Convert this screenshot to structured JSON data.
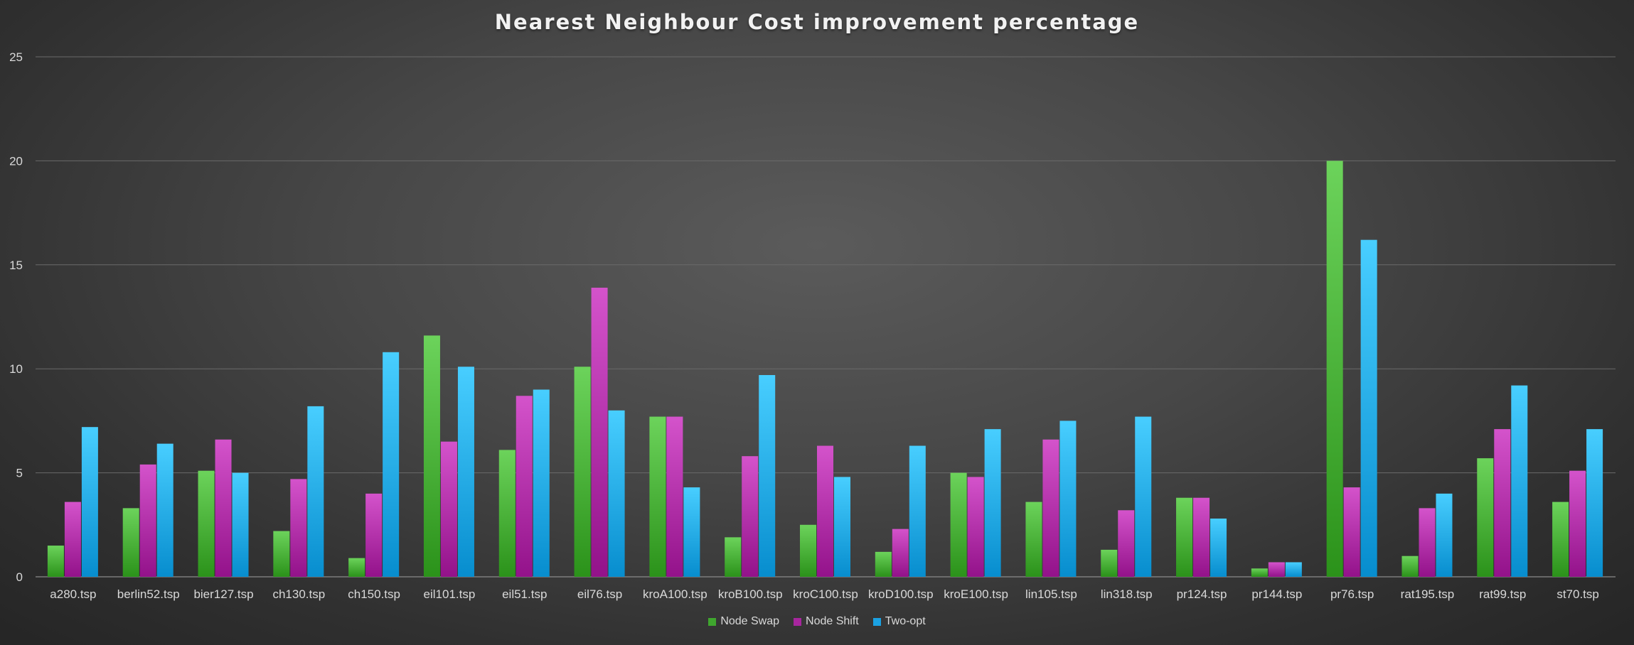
{
  "chart_data": {
    "type": "bar",
    "title": "Nearest Neighbour Cost improvement percentage",
    "xlabel": "",
    "ylabel": "",
    "ylim": [
      0,
      25
    ],
    "yticks": [
      0,
      5,
      10,
      15,
      20,
      25
    ],
    "grid": true,
    "legend_position": "bottom",
    "categories": [
      "a280.tsp",
      "berlin52.tsp",
      "bier127.tsp",
      "ch130.tsp",
      "ch150.tsp",
      "eil101.tsp",
      "eil51.tsp",
      "eil76.tsp",
      "kroA100.tsp",
      "kroB100.tsp",
      "kroC100.tsp",
      "kroD100.tsp",
      "kroE100.tsp",
      "lin105.tsp",
      "lin318.tsp",
      "pr124.tsp",
      "pr144.tsp",
      "pr76.tsp",
      "rat195.tsp",
      "rat99.tsp",
      "st70.tsp"
    ],
    "series": [
      {
        "name": "Node Swap",
        "color": "#3fa62e",
        "values": [
          1.5,
          3.3,
          5.1,
          2.2,
          0.9,
          11.6,
          6.1,
          10.1,
          7.7,
          1.9,
          2.5,
          1.2,
          5.0,
          3.6,
          1.3,
          3.8,
          0.4,
          20.0,
          1.0,
          5.7,
          3.6
        ]
      },
      {
        "name": "Node Shift",
        "color": "#a7269e",
        "values": [
          3.6,
          5.4,
          6.6,
          4.7,
          4.0,
          6.5,
          8.7,
          13.9,
          7.7,
          5.8,
          6.3,
          2.3,
          4.8,
          6.6,
          3.2,
          3.8,
          0.7,
          4.3,
          3.3,
          7.1,
          5.1
        ]
      },
      {
        "name": "Two-opt",
        "color": "#1ba1e2",
        "values": [
          7.2,
          6.4,
          5.0,
          8.2,
          10.8,
          10.1,
          9.0,
          8.0,
          4.3,
          9.7,
          4.8,
          6.3,
          7.1,
          7.5,
          7.7,
          2.8,
          0.7,
          16.2,
          4.0,
          9.2,
          7.1
        ]
      }
    ]
  }
}
